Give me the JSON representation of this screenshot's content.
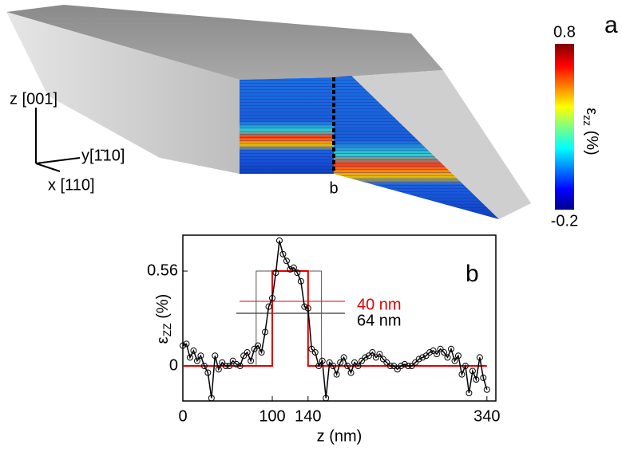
{
  "panel_a": {
    "label": "a",
    "axes": [
      "z [001]",
      "y[1̄10]",
      "x [110]"
    ],
    "cut_label": "b",
    "colorbar": {
      "ticks": [
        0.8,
        -0.2
      ],
      "label_symbol": "ε",
      "label_sub": "zz",
      "label_unit": " (%)"
    }
  },
  "chart_data": {
    "type": "line",
    "panel_label": "b",
    "xlabel": "z (nm)",
    "ylabel_symbol": "ε",
    "ylabel_sub": "ZZ",
    "ylabel_unit": " (%)",
    "xlim": [
      0,
      350
    ],
    "ylim": [
      -0.207,
      0.772
    ],
    "xticks": [
      0,
      100,
      140,
      340
    ],
    "yticks": [
      0,
      0.56
    ],
    "annotations": [
      {
        "text": "40 nm",
        "color": "#e00000"
      },
      {
        "text": "64 nm",
        "color": "#000000"
      }
    ],
    "series": [
      {
        "color": "#000000",
        "marker": true,
        "x": [
          0,
          4,
          8,
          12,
          16,
          20,
          24,
          28,
          32,
          36,
          40,
          44,
          48,
          52,
          56,
          60,
          64,
          68,
          72,
          76,
          80,
          84,
          88,
          92,
          96,
          100,
          104,
          108,
          112,
          116,
          120,
          124,
          128,
          132,
          136,
          140,
          144,
          148,
          152,
          156,
          160,
          164,
          168,
          172,
          176,
          180,
          184,
          188,
          192,
          196,
          200,
          204,
          208,
          212,
          216,
          220,
          224,
          228,
          232,
          236,
          240,
          244,
          248,
          252,
          256,
          260,
          264,
          268,
          272,
          276,
          280,
          284,
          288,
          292,
          296,
          300,
          304,
          308,
          312,
          316,
          320,
          324,
          328,
          332,
          336,
          340
        ],
        "values": [
          0.12,
          0.13,
          0.05,
          0.09,
          0.03,
          0.06,
          0.0,
          -0.04,
          -0.19,
          0.06,
          -0.02,
          0.02,
          0.0,
          0.0,
          0.03,
          0.01,
          0.0,
          0.06,
          0.08,
          0.03,
          0.1,
          0.12,
          0.08,
          0.2,
          0.35,
          0.4,
          0.55,
          0.74,
          0.66,
          0.62,
          0.57,
          0.58,
          0.55,
          0.5,
          0.35,
          0.34,
          0.1,
          0.08,
          0.0,
          0.03,
          -0.19,
          0.02,
          0.0,
          -0.05,
          0.02,
          0.05,
          0.0,
          -0.04,
          0.02,
          0.0,
          0.03,
          0.05,
          0.06,
          0.08,
          0.05,
          0.07,
          0.04,
          0.02,
          0.0,
          0.0,
          -0.02,
          0.0,
          0.01,
          0.0,
          0.0,
          0.02,
          0.04,
          0.05,
          0.06,
          0.08,
          0.09,
          0.07,
          0.1,
          0.08,
          0.05,
          0.1,
          0.03,
          0.06,
          -0.05,
          0.0,
          -0.16,
          -0.03,
          -0.08,
          0.05,
          -0.07,
          -0.14
        ]
      },
      {
        "color": "#e00000",
        "marker": false,
        "x": [
          0,
          100,
          100,
          140,
          140,
          340
        ],
        "values": [
          0,
          0,
          0.56,
          0.56,
          0,
          0
        ]
      },
      {
        "color": "#555555",
        "marker": false,
        "x": [
          82,
          82,
          155,
          155
        ],
        "values": [
          0,
          0.56,
          0.56,
          0
        ]
      }
    ]
  }
}
